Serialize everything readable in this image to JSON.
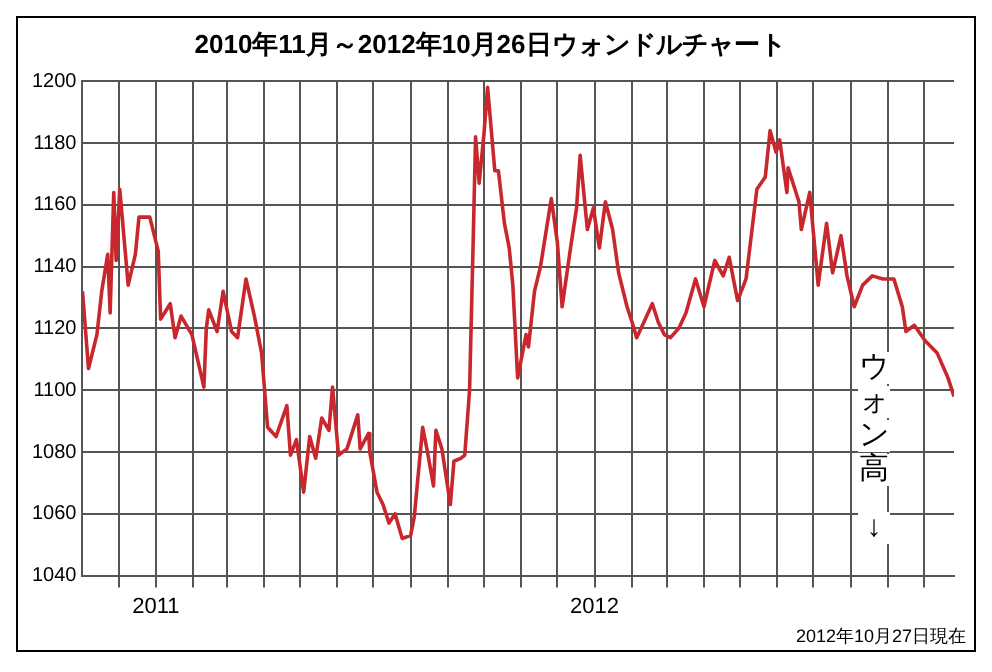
{
  "chart_data": {
    "type": "line",
    "title": "2010年11月～2012年10月26日ウォンドルチャート",
    "annotations": [
      "ウォン高↓",
      "2012年10月27日現在"
    ],
    "xlim": [
      "2010-11-01",
      "2012-10-26"
    ],
    "xticks": [
      {
        "value": "2010-12-01",
        "label": null
      },
      {
        "value": "2011-01-01",
        "label": "2011"
      },
      {
        "value": "2011-02-01",
        "label": null
      },
      {
        "value": "2011-03-01",
        "label": null
      },
      {
        "value": "2011-04-01",
        "label": null
      },
      {
        "value": "2011-05-01",
        "label": null
      },
      {
        "value": "2011-06-01",
        "label": null
      },
      {
        "value": "2011-07-01",
        "label": null
      },
      {
        "value": "2011-08-01",
        "label": null
      },
      {
        "value": "2011-09-01",
        "label": null
      },
      {
        "value": "2011-10-01",
        "label": null
      },
      {
        "value": "2011-11-01",
        "label": null
      },
      {
        "value": "2011-12-01",
        "label": null
      },
      {
        "value": "2012-01-01",
        "label": "2012"
      },
      {
        "value": "2012-02-01",
        "label": null
      },
      {
        "value": "2012-03-01",
        "label": null
      },
      {
        "value": "2012-04-01",
        "label": null
      },
      {
        "value": "2012-05-01",
        "label": null
      },
      {
        "value": "2012-06-01",
        "label": null
      },
      {
        "value": "2012-07-01",
        "label": null
      },
      {
        "value": "2012-08-01",
        "label": null
      },
      {
        "value": "2012-09-01",
        "label": null
      },
      {
        "value": "2012-10-01",
        "label": null
      }
    ],
    "ylim": [
      1040,
      1200
    ],
    "yticks": [
      1040,
      1060,
      1080,
      1100,
      1120,
      1140,
      1160,
      1180,
      1200
    ],
    "grid": true,
    "marker": "none",
    "line_style": "solid",
    "x": [
      "2010-11-01",
      "2010-11-06",
      "2010-11-13",
      "2010-11-17",
      "2010-11-22",
      "2010-11-24",
      "2010-11-27",
      "2010-11-29",
      "2010-12-02",
      "2010-12-09",
      "2010-12-15",
      "2010-12-18",
      "2010-12-27",
      "2011-01-03",
      "2011-01-05",
      "2011-01-13",
      "2011-01-17",
      "2011-01-22",
      "2011-01-31",
      "2011-02-10",
      "2011-02-12",
      "2011-02-14",
      "2011-02-21",
      "2011-02-26",
      "2011-03-05",
      "2011-03-10",
      "2011-03-17",
      "2011-03-24",
      "2011-03-30",
      "2011-04-04",
      "2011-04-11",
      "2011-04-20",
      "2011-04-23",
      "2011-04-28",
      "2011-05-04",
      "2011-05-09",
      "2011-05-14",
      "2011-05-19",
      "2011-05-25",
      "2011-05-28",
      "2011-06-02",
      "2011-06-09",
      "2011-06-18",
      "2011-06-20",
      "2011-06-27",
      "2011-06-28",
      "2011-07-04",
      "2011-07-09",
      "2011-07-14",
      "2011-07-19",
      "2011-07-25",
      "2011-08-01",
      "2011-08-04",
      "2011-08-11",
      "2011-08-15",
      "2011-08-20",
      "2011-08-22",
      "2011-08-27",
      "2011-09-03",
      "2011-09-06",
      "2011-09-12",
      "2011-09-15",
      "2011-09-19",
      "2011-09-22",
      "2011-09-24",
      "2011-09-27",
      "2011-10-01",
      "2011-10-04",
      "2011-10-10",
      "2011-10-13",
      "2011-10-18",
      "2011-10-22",
      "2011-10-25",
      "2011-10-29",
      "2011-11-05",
      "2011-11-07",
      "2011-11-12",
      "2011-11-17",
      "2011-11-26",
      "2011-12-01",
      "2011-12-05",
      "2011-12-12",
      "2011-12-17",
      "2011-12-20",
      "2011-12-26",
      "2011-12-31",
      "2012-01-05",
      "2012-01-10",
      "2012-01-16",
      "2012-01-21",
      "2012-01-28",
      "2012-02-02",
      "2012-02-05",
      "2012-02-11",
      "2012-02-18",
      "2012-02-23",
      "2012-02-28",
      "2012-03-04",
      "2012-03-11",
      "2012-03-17",
      "2012-03-25",
      "2012-04-01",
      "2012-04-10",
      "2012-04-17",
      "2012-04-22",
      "2012-04-29",
      "2012-05-06",
      "2012-05-15",
      "2012-05-22",
      "2012-05-26",
      "2012-05-31",
      "2012-06-03",
      "2012-06-09",
      "2012-06-10",
      "2012-06-19",
      "2012-06-21",
      "2012-06-28",
      "2012-07-05",
      "2012-07-12",
      "2012-07-17",
      "2012-07-24",
      "2012-07-29",
      "2012-08-04",
      "2012-08-11",
      "2012-08-19",
      "2012-08-28",
      "2012-09-06",
      "2012-09-13",
      "2012-09-16",
      "2012-09-23",
      "2012-10-02",
      "2012-10-12",
      "2012-10-21",
      "2012-10-26"
    ],
    "series": [
      {
        "color": "#c8282d",
        "values": [
          1132,
          1107,
          1118,
          1132,
          1144,
          1125,
          1164,
          1142,
          1165,
          1134,
          1144,
          1156,
          1156,
          1145,
          1123,
          1128,
          1117,
          1124,
          1118,
          1101,
          1120,
          1126,
          1119,
          1132,
          1119,
          1117,
          1136,
          1124,
          1112,
          1088,
          1085,
          1095,
          1079,
          1084,
          1067,
          1085,
          1078,
          1091,
          1087,
          1101,
          1079,
          1081,
          1092,
          1081,
          1086,
          1080,
          1067,
          1063,
          1057,
          1060,
          1052,
          1053,
          1059,
          1088,
          1080,
          1069,
          1087,
          1081,
          1063,
          1077,
          1078,
          1079,
          1100,
          1148,
          1182,
          1167,
          1183,
          1198,
          1171,
          1171,
          1154,
          1146,
          1134,
          1104,
          1118,
          1114,
          1132,
          1140,
          1162,
          1148,
          1127,
          1146,
          1159,
          1176,
          1152,
          1159,
          1146,
          1161,
          1152,
          1138,
          1127,
          1121,
          1117,
          1122,
          1128,
          1122,
          1118,
          1117,
          1120,
          1125,
          1136,
          1127,
          1142,
          1137,
          1143,
          1129,
          1136,
          1165,
          1169,
          1184,
          1177,
          1181,
          1164,
          1172,
          1161,
          1152,
          1164,
          1134,
          1154,
          1138,
          1150,
          1137,
          1127,
          1134,
          1137,
          1136,
          1136,
          1127,
          1119,
          1121,
          1116,
          1112,
          1104,
          1098
        ]
      }
    ]
  }
}
